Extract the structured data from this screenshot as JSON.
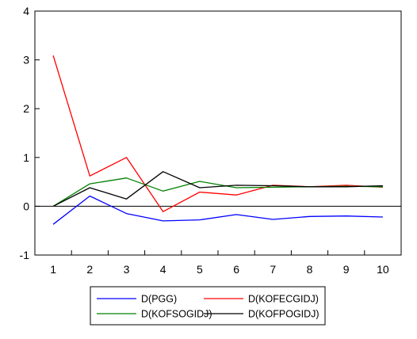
{
  "chart_data": {
    "type": "line",
    "title": "",
    "xlabel": "",
    "ylabel": "",
    "x": [
      1,
      2,
      3,
      4,
      5,
      6,
      7,
      8,
      9,
      10
    ],
    "ylim": [
      -1,
      4
    ],
    "yticks": [
      -1,
      0,
      1,
      2,
      3,
      4
    ],
    "grid": false,
    "zero_line": true,
    "legend_placement": "bottom-center",
    "series": [
      {
        "name": "D(PGG)",
        "color": "#0000ff",
        "values": [
          -0.37,
          0.21,
          -0.15,
          -0.3,
          -0.28,
          -0.17,
          -0.27,
          -0.21,
          -0.2,
          -0.22
        ]
      },
      {
        "name": "D(KOFECGIDJ)",
        "color": "#ff0000",
        "values": [
          3.09,
          0.62,
          1.0,
          -0.11,
          0.29,
          0.23,
          0.43,
          0.4,
          0.43,
          0.39
        ]
      },
      {
        "name": "D(KOFSOGIDJ)",
        "color": "#008000",
        "values": [
          0.0,
          0.46,
          0.58,
          0.31,
          0.51,
          0.38,
          0.39,
          0.4,
          0.41,
          0.4
        ]
      },
      {
        "name": "D(KOFPOGIDJ)",
        "color": "#000000",
        "values": [
          0.0,
          0.38,
          0.15,
          0.71,
          0.38,
          0.43,
          0.42,
          0.4,
          0.4,
          0.42
        ]
      }
    ]
  }
}
